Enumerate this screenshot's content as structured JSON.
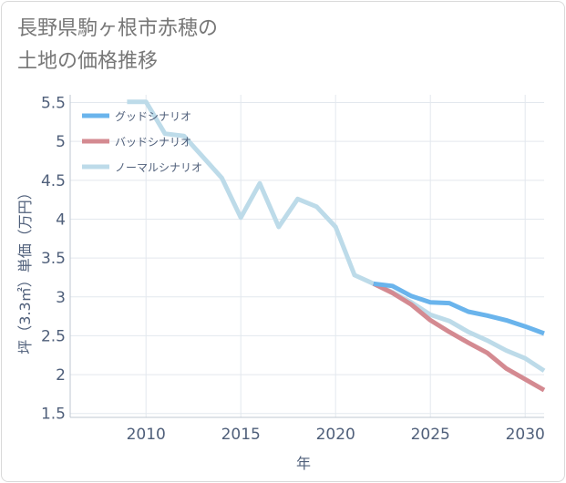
{
  "title": "長野県駒ヶ根市赤穂の\n土地の価格推移",
  "chart_data": {
    "type": "line",
    "title": "長野県駒ヶ根市赤穂の土地の価格推移",
    "xlabel": "年",
    "ylabel": "坪（3.3㎡）単価（万円）",
    "xlim": [
      2006,
      2031
    ],
    "ylim": [
      1.45,
      5.6
    ],
    "x_ticks": [
      2010,
      2015,
      2020,
      2025,
      2030
    ],
    "y_ticks": [
      1.5,
      2,
      2.5,
      3,
      3.5,
      4,
      4.5,
      5,
      5.5
    ],
    "grid": true,
    "legend_position": "top-left",
    "series": [
      {
        "name": "グッドシナリオ",
        "color": "#6ab4ec",
        "x": [
          2022,
          2023,
          2024,
          2025,
          2026,
          2027,
          2028,
          2029,
          2030,
          2031
        ],
        "y": [
          3.17,
          3.14,
          3.01,
          2.93,
          2.92,
          2.81,
          2.76,
          2.7,
          2.62,
          2.53
        ]
      },
      {
        "name": "バッドシナリオ",
        "color": "#d48a91",
        "x": [
          2022,
          2023,
          2024,
          2025,
          2026,
          2027,
          2028,
          2029,
          2030,
          2031
        ],
        "y": [
          3.17,
          3.05,
          2.9,
          2.7,
          2.55,
          2.41,
          2.28,
          2.08,
          1.94,
          1.8
        ]
      },
      {
        "name": "ノーマルシナリオ",
        "color": "#bddbe9",
        "x": [
          2009,
          2010,
          2011,
          2012,
          2013,
          2014,
          2015,
          2016,
          2017,
          2018,
          2019,
          2020,
          2021,
          2022,
          2023,
          2024,
          2025,
          2026,
          2027,
          2028,
          2029,
          2030,
          2031
        ],
        "y": [
          5.51,
          5.51,
          5.1,
          5.07,
          4.8,
          4.53,
          4.02,
          4.46,
          3.9,
          4.26,
          4.16,
          3.9,
          3.28,
          3.17,
          3.06,
          2.93,
          2.77,
          2.69,
          2.55,
          2.44,
          2.31,
          2.21,
          2.05
        ]
      }
    ]
  }
}
